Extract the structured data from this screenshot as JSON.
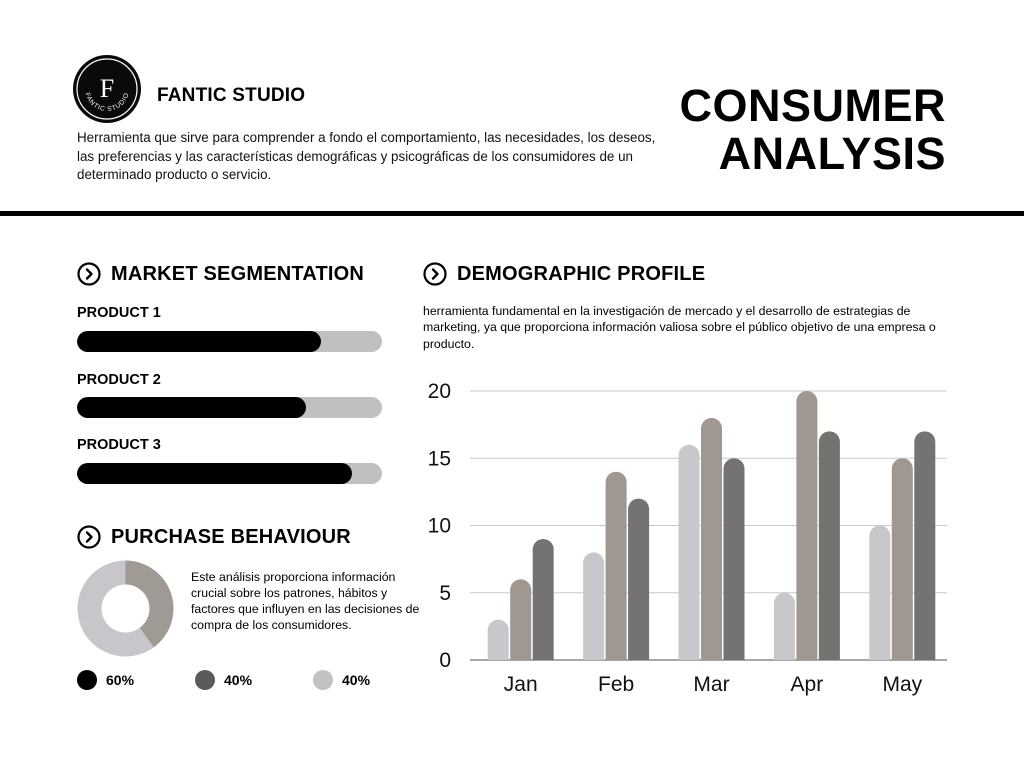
{
  "header": {
    "brand": "FANTIC STUDIO",
    "logo_letter": "F",
    "logo_ring_text": "FANTIC STUDIO",
    "description": "Herramienta que sirve para comprender a fondo el comportamiento, las necesidades, los deseos, las preferencias y las características demográficas y psicográficas de los consumidores de un determinado producto o servicio.",
    "title_line1": "CONSUMER",
    "title_line2": "ANALYSIS"
  },
  "market_segmentation": {
    "heading": "MARKET SEGMENTATION",
    "products": [
      {
        "label": "PRODUCT 1",
        "fraction": 0.8
      },
      {
        "label": "PRODUCT 2",
        "fraction": 0.75
      },
      {
        "label": "PRODUCT 3",
        "fraction": 0.9
      }
    ]
  },
  "purchase_behaviour": {
    "heading": "PURCHASE BEHAVIOUR",
    "text": "Este análisis proporciona información crucial sobre los patrones, hábitos y factores que influyen en las decisiones de compra de los consumidores.",
    "donut_segments": [
      {
        "percent": 40,
        "color": "#a09a94"
      },
      {
        "percent": 30,
        "color": "#c7c7cb"
      },
      {
        "percent": 30,
        "color": "#c7c7cb"
      }
    ],
    "legend": [
      {
        "value": "60%",
        "color": "#000000"
      },
      {
        "value": "40%",
        "color": "#5a5a5a"
      },
      {
        "value": "40%",
        "color": "#c2c2c2"
      }
    ]
  },
  "demographic_profile": {
    "heading": "DEMOGRAPHIC PROFILE",
    "text": " herramienta fundamental en la investigación de mercado y el desarrollo de estrategias de marketing, ya que proporciona información valiosa sobre el público objetivo de una empresa o producto."
  },
  "chart_data": {
    "type": "bar",
    "title": "",
    "xlabel": "",
    "ylabel": "",
    "categories": [
      "Jan",
      "Feb",
      "Mar",
      "Apr",
      "May"
    ],
    "yticks": [
      "0",
      "5",
      "10",
      "15",
      "20"
    ],
    "ylim": [
      0,
      20
    ],
    "grid": true,
    "series": [
      {
        "values": [
          3,
          8,
          16,
          5,
          10
        ],
        "color": "#c8c7cc"
      },
      {
        "values": [
          6,
          14,
          18,
          20,
          15
        ],
        "color": "#a09890"
      },
      {
        "values": [
          9,
          12,
          15,
          17,
          17
        ],
        "color": "#737373"
      }
    ]
  }
}
